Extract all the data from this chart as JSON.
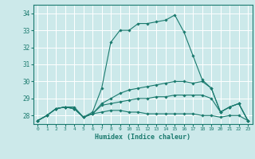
{
  "xlabel": "Humidex (Indice chaleur)",
  "xlim": [
    -0.5,
    23.5
  ],
  "ylim": [
    27.5,
    34.5
  ],
  "yticks": [
    28,
    29,
    30,
    31,
    32,
    33,
    34
  ],
  "xticks": [
    0,
    1,
    2,
    3,
    4,
    5,
    6,
    7,
    8,
    9,
    10,
    11,
    12,
    13,
    14,
    15,
    16,
    17,
    18,
    19,
    20,
    21,
    22,
    23
  ],
  "background_color": "#cce9ea",
  "grid_color": "#ffffff",
  "line_color": "#1a7a6e",
  "lines": [
    [
      27.7,
      28.0,
      28.4,
      28.5,
      28.5,
      27.9,
      28.2,
      29.6,
      32.3,
      33.0,
      33.0,
      33.4,
      33.4,
      33.5,
      33.6,
      33.9,
      32.9,
      31.5,
      30.1,
      29.6,
      28.2,
      28.5,
      28.7,
      27.7
    ],
    [
      27.7,
      28.0,
      28.4,
      28.5,
      28.4,
      27.9,
      28.1,
      28.7,
      29.0,
      29.3,
      29.5,
      29.6,
      29.7,
      29.8,
      29.9,
      30.0,
      30.0,
      29.9,
      30.0,
      29.6,
      28.2,
      28.5,
      28.7,
      27.7
    ],
    [
      27.7,
      28.0,
      28.4,
      28.5,
      28.4,
      27.9,
      28.1,
      28.6,
      28.7,
      28.8,
      28.9,
      29.0,
      29.0,
      29.1,
      29.1,
      29.2,
      29.2,
      29.2,
      29.2,
      29.0,
      28.2,
      28.5,
      28.7,
      27.7
    ],
    [
      27.7,
      28.0,
      28.4,
      28.5,
      28.4,
      27.9,
      28.1,
      28.2,
      28.3,
      28.3,
      28.2,
      28.2,
      28.1,
      28.1,
      28.1,
      28.1,
      28.1,
      28.1,
      28.0,
      28.0,
      27.9,
      28.0,
      28.0,
      27.7
    ]
  ]
}
